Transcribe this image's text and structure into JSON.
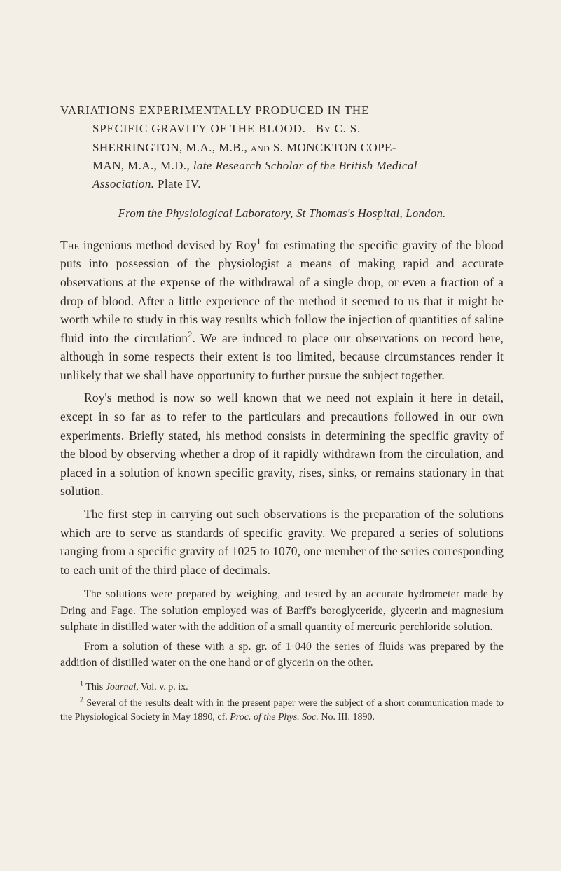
{
  "title": {
    "line1": "VARIATIONS EXPERIMENTALLY PRODUCED IN THE",
    "line2_prefix": "SPECIFIC GRAVITY OF THE BLOOD.",
    "by": "  B( C. S.",
    "authors_l1": "SHERRINGTON, M.A., M.B., ",
    "and": "and",
    "authors_l1b": " S. MONCKTON COPE-",
    "authors_l2": "MAN, M.A., M.D., ",
    "late": "late",
    "scholar": " Research Scholar of the British Medical",
    "assoc": "Association.",
    "plate": "  Plate IV."
  },
  "from_line": "From the Physiological Laboratory, St Thomas's Hospital, London.",
  "para1": "The ingenious method devised by Roy¹ for estimating the specific gravity of the blood puts into possession of the physiologist a means of making rapid and accurate observations at the expense of the with­drawal of a single drop, or even a fraction of a drop of blood. After a little experience of the method it seemed to us that it might be worth while to study in this way results which follow the injection of quantities of saline fluid into the circulation². We are induced to place our observations on record here, although in some respects their extent is too limited, because circumstances render it unlikely that we shall have opportunity to further pursue the subject together.",
  "para2": "Roy's method is now so well known that we need not explain it here in detail, except in so far as to refer to the particulars and pre­cautions followed in our own experiments. Briefly stated, his method consists in determining the specific gravity of the blood by observing whether a drop of it rapidly withdrawn from the circulation, and placed in a solution of known specific gravity, rises, sinks, or remains stationary in that solution.",
  "para3": "The first step in carrying out such observations is the preparation of the solutions which are to serve as standards of specific gravity. We prepared a series of solutions ranging from a specific gravity of 1025 to 1070, one member of the series corresponding to each unit of the third place of decimals.",
  "small1": "The solutions were prepared by weighing, and tested by an accurate hydrometer made by Dring and Fage. The solution employed was of Barff's boroglyceride, glycerin and magnesium sulphate in distilled water with the addition of a small quantity of mercuric perchloride solution.",
  "small2": "From a solution of these with a sp. gr. of 1·040 the series of fluids was prepared by the addition of distilled water on the one hand or of glycerin on the other.",
  "footnotes": {
    "f1_pre": "¹ This ",
    "f1_it": "Journal",
    "f1_post": ", Vol. v. p. ix.",
    "f2_pre": "² Several of the results dealt with in the present paper were the subject of a short com­munication made to the Physiological Society in May 1890, cf. ",
    "f2_it": "Proc. of the Phys. Soc.",
    "f2_post": " No. III. 1890."
  }
}
